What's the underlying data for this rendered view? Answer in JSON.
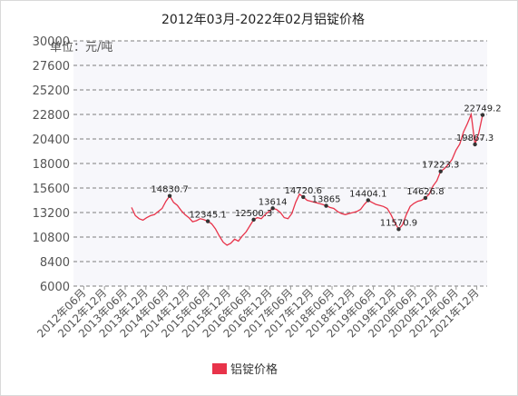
{
  "chart_data": {
    "type": "line",
    "title": "2012年03月-2022年02月铝锭价格",
    "unit_label": "单位：元/吨",
    "ylim": [
      6000,
      30000
    ],
    "yticks": [
      "30000",
      "27600",
      "25200",
      "22800",
      "20400",
      "18000",
      "15600",
      "13200",
      "10800",
      "8400",
      "6000"
    ],
    "grid": true,
    "legend_position": "bottom",
    "colors": {
      "line": "#e8334a",
      "marker": "#333333",
      "grid": "#555555",
      "plot_bg": "#f7f7fb"
    },
    "x_tick_labels": [
      "2012年06月",
      "2012年12月",
      "2013年06月",
      "2013年12月",
      "2014年06月",
      "2014年12月",
      "2015年06月",
      "2015年12月",
      "2016年06月",
      "2016年12月",
      "2017年06月",
      "2017年12月",
      "2018年06月",
      "2018年12月",
      "2019年06月",
      "2019年12月",
      "2020年06月",
      "2020年12月",
      "2021年06月",
      "2021年12月"
    ],
    "series": [
      {
        "name": "铝锭价格",
        "values": [
          13700,
          12900,
          12600,
          12450,
          12700,
          12900,
          13000,
          13300,
          13600,
          14300,
          14830.7,
          14200,
          13900,
          13400,
          13000,
          12700,
          12300,
          12400,
          12600,
          12500,
          12345.1,
          12100,
          11600,
          10900,
          10300,
          10000,
          10200,
          10600,
          10400,
          10900,
          11300,
          11900,
          12500.3,
          12700,
          12600,
          13000,
          13300,
          13614,
          13500,
          13200,
          12700,
          12600,
          13100,
          14200,
          15000,
          14720.6,
          14400,
          14300,
          14200,
          14100,
          14000,
          13865,
          13700,
          13600,
          13300,
          13100,
          13000,
          13100,
          13200,
          13300,
          13500,
          14000,
          14404.1,
          14200,
          14000,
          13900,
          13800,
          13600,
          13000,
          12200,
          11570.9,
          12000,
          13000,
          13800,
          14100,
          14300,
          14400,
          14626.8,
          15000,
          15800,
          16300,
          17223.3,
          17500,
          17900,
          18400,
          19300,
          19900,
          21100,
          21900,
          22800,
          19867.3,
          21000,
          22749.2
        ],
        "points": [
          {
            "i": 10,
            "label": "14830.7"
          },
          {
            "i": 20,
            "label": "12345.1"
          },
          {
            "i": 32,
            "label": "12500.3"
          },
          {
            "i": 37,
            "label": "13614"
          },
          {
            "i": 45,
            "label": "14720.6"
          },
          {
            "i": 51,
            "label": "13865"
          },
          {
            "i": 62,
            "label": "14404.1"
          },
          {
            "i": 70,
            "label": "11570.9"
          },
          {
            "i": 77,
            "label": "14626.8"
          },
          {
            "i": 81,
            "label": "17223.3"
          },
          {
            "i": 90,
            "label": "19867.3"
          },
          {
            "i": 92,
            "label": "22749.2"
          }
        ]
      }
    ]
  }
}
